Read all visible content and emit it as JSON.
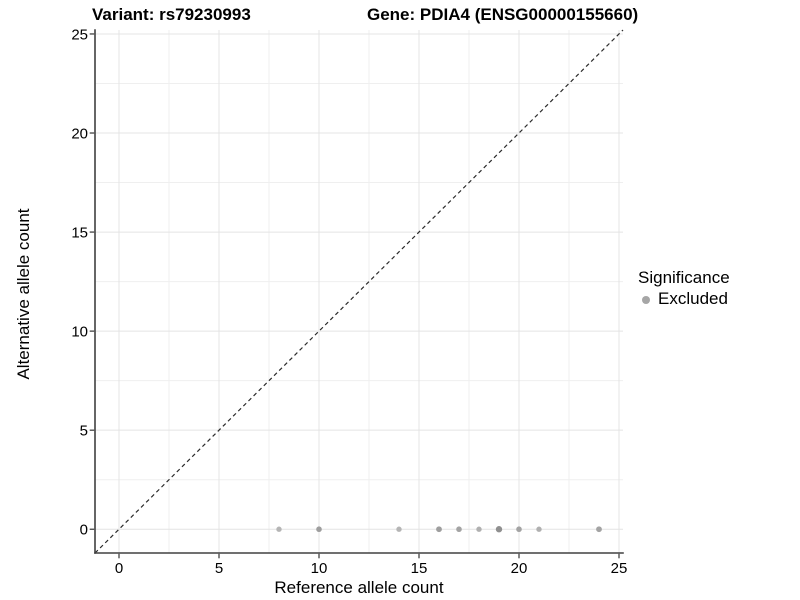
{
  "titles": {
    "left": "Variant: rs79230993",
    "right": "Gene: PDIA4 (ENSG00000155660)"
  },
  "chart_data": {
    "type": "scatter",
    "xlabel": "Reference allele count",
    "ylabel": "Alternative allele count",
    "xlim": [
      -1.2,
      25.2
    ],
    "ylim": [
      -1.2,
      25.2
    ],
    "x_ticks": [
      0,
      5,
      10,
      15,
      20,
      25
    ],
    "y_ticks": [
      0,
      5,
      10,
      15,
      20,
      25
    ],
    "x_minor_ticks": [
      2.5,
      7.5,
      12.5,
      17.5,
      22.5
    ],
    "y_minor_ticks": [
      2.5,
      7.5,
      12.5,
      17.5,
      22.5
    ],
    "grid": "major+minor",
    "identity_line": {
      "style": "dashed",
      "from": [
        -1.2,
        -1.2
      ],
      "to": [
        25.2,
        25.2
      ],
      "color": "#2b2b2b"
    },
    "series": [
      {
        "name": "Excluded",
        "points": [
          {
            "x": 8,
            "y": 0,
            "color": "#b5b5b5",
            "r": 2.7
          },
          {
            "x": 10,
            "y": 0,
            "color": "#9e9e9e",
            "r": 2.8
          },
          {
            "x": 14,
            "y": 0,
            "color": "#b5b5b5",
            "r": 2.7
          },
          {
            "x": 16,
            "y": 0,
            "color": "#9e9e9e",
            "r": 2.9
          },
          {
            "x": 17,
            "y": 0,
            "color": "#a3a3a3",
            "r": 2.8
          },
          {
            "x": 18,
            "y": 0,
            "color": "#b0b0b0",
            "r": 2.7
          },
          {
            "x": 19,
            "y": 0,
            "color": "#8f8f8f",
            "r": 3.2
          },
          {
            "x": 20,
            "y": 0,
            "color": "#a3a3a3",
            "r": 2.8
          },
          {
            "x": 21,
            "y": 0,
            "color": "#b0b0b0",
            "r": 2.7
          },
          {
            "x": 24,
            "y": 0,
            "color": "#a3a3a3",
            "r": 2.9
          }
        ]
      }
    ],
    "legend": {
      "title": "Significance",
      "position": "right",
      "entries": [
        {
          "label": "Excluded",
          "color": "#a6a6a6"
        }
      ]
    },
    "colors": {
      "grid_major": "#e4e4e4",
      "grid_minor": "#efefef",
      "axis_line": "#404040",
      "tick": "#333333",
      "text": "#000000",
      "background": "#ffffff"
    }
  }
}
